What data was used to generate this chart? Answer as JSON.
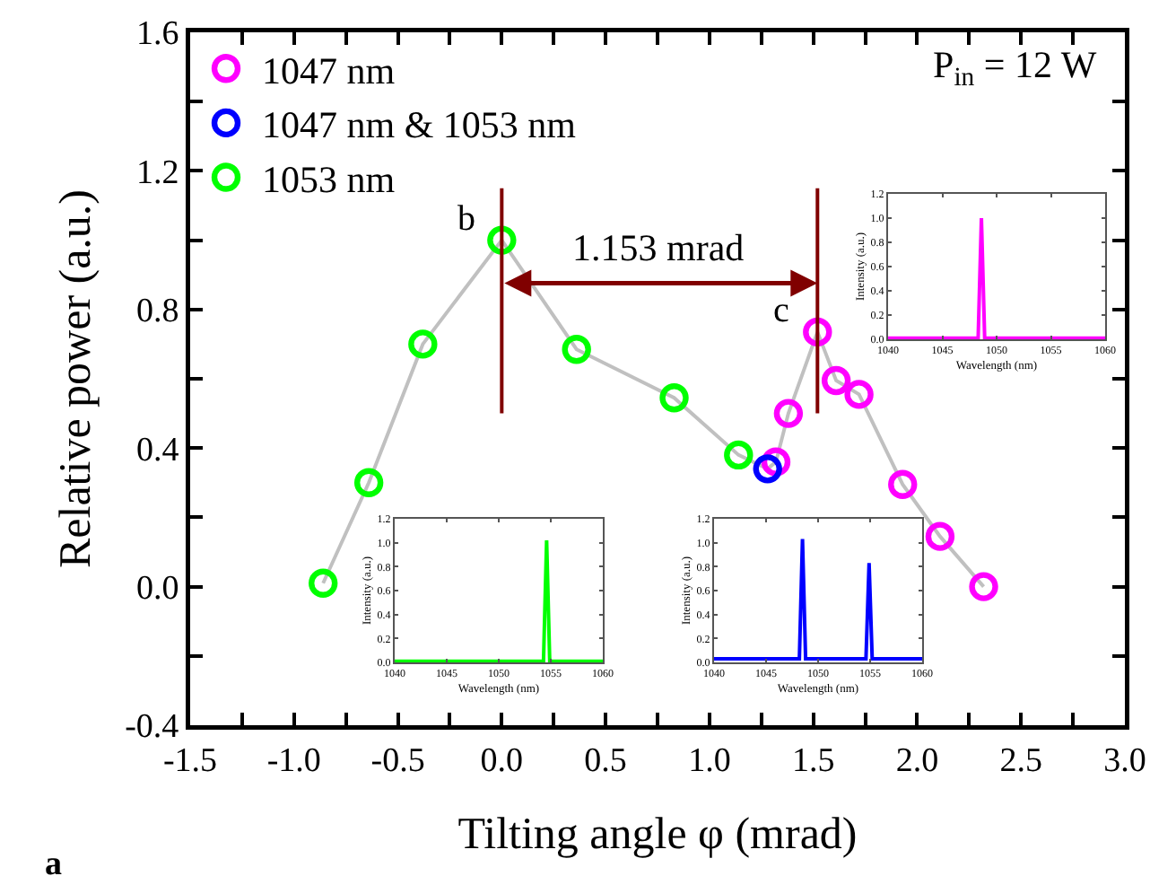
{
  "chart_data": [
    {
      "type": "scatter",
      "xlabel": "Tilting angle φ (mrad)",
      "ylabel": "Relative power (a.u.)",
      "marker": "circle",
      "legend": "top left",
      "grid": false,
      "xlim": [
        -1.5,
        3.0
      ],
      "xticks": [
        -1.5,
        {
          "value": -1.25,
          "label": null
        },
        {
          "value": -1,
          "label": "-1.0"
        },
        {
          "value": -0.75,
          "label": null
        },
        -0.5,
        {
          "value": -0.25,
          "label": null
        },
        {
          "value": 0,
          "label": "0.0"
        },
        {
          "value": 0.25,
          "label": null
        },
        0.5,
        {
          "value": 0.75,
          "label": null
        },
        {
          "value": 1,
          "label": "1.0"
        },
        {
          "value": 1.25,
          "label": null
        },
        1.5,
        {
          "value": 1.75,
          "label": null
        },
        {
          "value": 2,
          "label": "2.0"
        },
        {
          "value": 2.25,
          "label": null
        },
        2.5,
        {
          "value": 2.75,
          "label": null
        },
        {
          "value": 3,
          "label": "3.0"
        }
      ],
      "ylim": [
        -0.4,
        1.6
      ],
      "yticks": [
        -0.4,
        {
          "value": -0.2,
          "label": null
        },
        {
          "value": 0,
          "label": "0.0"
        },
        {
          "value": 0.2,
          "label": null
        },
        0.4,
        {
          "value": 0.6,
          "label": null
        },
        0.8,
        {
          "value": 1.0,
          "label": null
        },
        1.2,
        {
          "value": 1.4,
          "label": null
        },
        1.6
      ],
      "series": [
        {
          "type": "line",
          "color": "#c0c0c0",
          "marker": "none",
          "x": [
            -0.86,
            -0.64,
            -0.38,
            0.0,
            0.36,
            0.83,
            1.14,
            1.28,
            1.32,
            1.38,
            1.52,
            1.61,
            1.72,
            1.93,
            2.11,
            2.32
          ],
          "values": [
            0.01,
            0.3,
            0.7,
            1.0,
            0.685,
            0.545,
            0.38,
            0.34,
            0.36,
            0.5,
            0.735,
            0.595,
            0.555,
            0.295,
            0.145,
            0.0
          ]
        },
        {
          "name": "1047 nm",
          "color": "#ff00ff",
          "x": [
            1.32,
            1.38,
            1.52,
            1.61,
            1.72,
            1.93,
            2.11,
            2.32
          ],
          "values": [
            0.36,
            0.5,
            0.735,
            0.595,
            0.555,
            0.295,
            0.145,
            0.0
          ]
        },
        {
          "name": "1047 nm & 1053 nm",
          "color": "#0000ff",
          "x": [
            1.28
          ],
          "values": [
            0.34
          ]
        },
        {
          "name": "1053 nm",
          "color": "#00ff00",
          "x": [
            -0.86,
            -0.64,
            -0.38,
            0.0,
            0.36,
            0.83,
            1.14
          ],
          "values": [
            0.01,
            0.3,
            0.7,
            1.0,
            0.685,
            0.545,
            0.38
          ]
        }
      ],
      "ref_lines": [
        {
          "axis": "x",
          "value": 0.0,
          "color": "#800000"
        },
        {
          "axis": "x",
          "value": 1.52,
          "color": "#800000"
        }
      ],
      "annotations": [
        "1.153 mrad",
        {
          "text": "b",
          "x": 0.0,
          "y": 1.0
        },
        {
          "text": "c",
          "x": 1.52,
          "y": 0.735
        },
        "P$_{in}$ = 12 W",
        "a"
      ]
    },
    {
      "type": "line",
      "xlabel": "Wavelength (nm)",
      "ylabel": "Intensity (a.u.)",
      "xlim": [
        1040,
        1060
      ],
      "xticks": [
        1040,
        1045,
        1050,
        1055,
        1060
      ],
      "ylim": [
        0,
        1.2
      ],
      "yticks": [
        {
          "value": 0,
          "label": "0.0"
        },
        0.2,
        0.4,
        0.6,
        0.8,
        {
          "value": 1,
          "label": "1.0"
        },
        1.2
      ],
      "series": [
        {
          "color": "#ff00ff",
          "x": [
            1040,
            1048.3,
            1048.6,
            1048.9,
            1060
          ],
          "values": [
            0.01,
            0.01,
            1.0,
            0.01,
            0.01
          ]
        }
      ]
    },
    {
      "type": "line",
      "xlabel": "Wavelength (nm)",
      "ylabel": "Intensity (a.u.)",
      "xlim": [
        1040,
        1060
      ],
      "xticks": [
        1040,
        1045,
        1050,
        1055,
        1060
      ],
      "ylim": [
        0,
        1.2
      ],
      "yticks": [
        {
          "value": 0,
          "label": "0.0"
        },
        0.2,
        0.4,
        0.6,
        0.8,
        {
          "value": 1,
          "label": "1.0"
        },
        1.2
      ],
      "series": [
        {
          "color": "#00ff00",
          "x": [
            1040,
            1054.3,
            1054.6,
            1054.9,
            1060
          ],
          "values": [
            0.01,
            0.01,
            1.02,
            0.01,
            0.01
          ]
        }
      ]
    },
    {
      "type": "line",
      "xlabel": "Wavelength (nm)",
      "ylabel": "Intensity (a.u.)",
      "xlim": [
        1040,
        1060
      ],
      "xticks": [
        1040,
        1045,
        1050,
        1055,
        1060
      ],
      "ylim": [
        0,
        1.2
      ],
      "yticks": [
        {
          "value": 0,
          "label": "0.0"
        },
        0.2,
        0.4,
        0.6,
        0.8,
        {
          "value": 1,
          "label": "1.0"
        },
        1.2
      ],
      "series": [
        {
          "color": "#0000ff",
          "x": [
            1040,
            1048.2,
            1048.5,
            1048.8,
            1054.6,
            1054.9,
            1055.2,
            1060
          ],
          "values": [
            0.03,
            0.03,
            1.03,
            0.03,
            0.03,
            0.83,
            0.03,
            0.03
          ]
        }
      ]
    }
  ]
}
